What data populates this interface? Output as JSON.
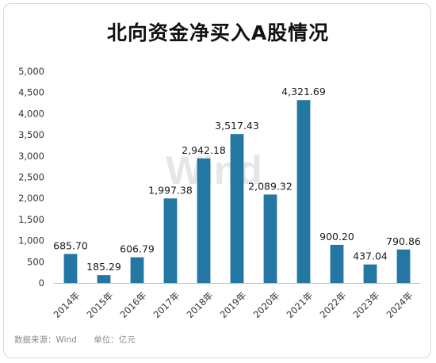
{
  "title": "北向资金净买入A股情况",
  "watermark": "Wind",
  "footer": {
    "source": "数据来源：Wind",
    "unit": "单位：亿元"
  },
  "colors": {
    "bar": "#2577a3",
    "axis_text": "#333333",
    "axis_line": "#bfbfbf",
    "watermark": "#e6e6e6"
  },
  "chart_data": {
    "type": "bar",
    "title": "北向资金净买入A股情况",
    "categories": [
      "2014年",
      "2015年",
      "2016年",
      "2017年",
      "2018年",
      "2019年",
      "2020年",
      "2021年",
      "2022年",
      "2023年",
      "2024年"
    ],
    "values": [
      685.7,
      185.29,
      606.79,
      1997.38,
      2942.18,
      3517.43,
      2089.32,
      4321.69,
      900.2,
      437.04,
      790.86
    ],
    "data_labels": [
      "685.70",
      "185.29",
      "606.79",
      "1,997.38",
      "2,942.18",
      "3,517.43",
      "2,089.32",
      "4,321.69",
      "900.20",
      "437.04",
      "790.86"
    ],
    "yticks": [
      "0",
      "500",
      "1,000",
      "1,500",
      "2,000",
      "2,500",
      "3,000",
      "3,500",
      "4,000",
      "4,500",
      "5,000"
    ],
    "ylim": [
      0,
      5000
    ],
    "xlabel": "",
    "ylabel": "",
    "grid": false,
    "legend": "none"
  }
}
